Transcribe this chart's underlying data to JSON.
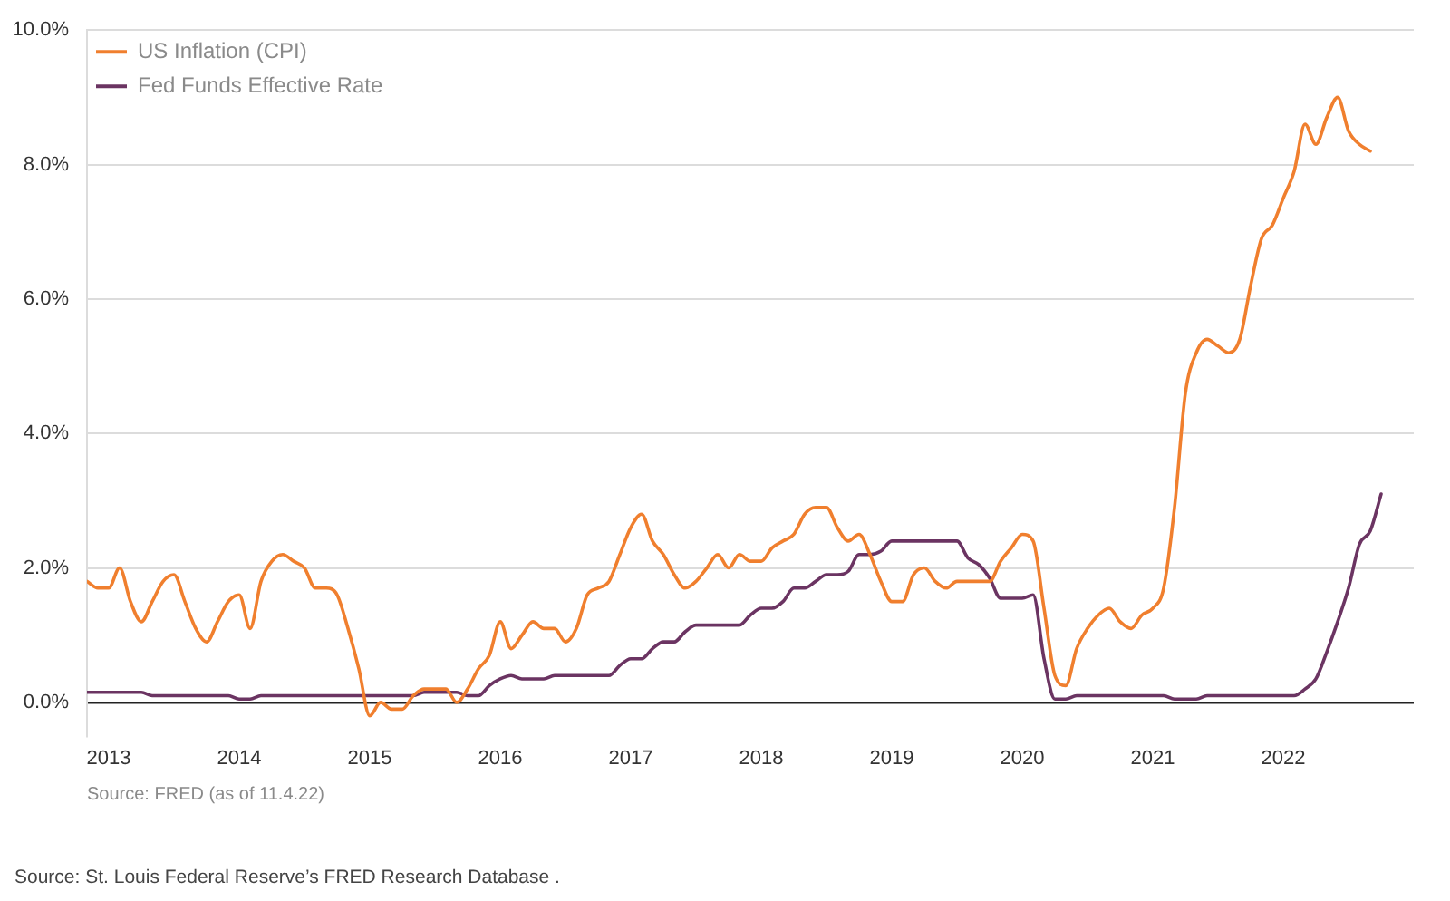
{
  "chart_data": {
    "type": "line",
    "x": [
      "2012-11",
      "2012-12",
      "2013-01",
      "2013-02",
      "2013-03",
      "2013-04",
      "2013-05",
      "2013-06",
      "2013-07",
      "2013-08",
      "2013-09",
      "2013-10",
      "2013-11",
      "2013-12",
      "2014-01",
      "2014-02",
      "2014-03",
      "2014-04",
      "2014-05",
      "2014-06",
      "2014-07",
      "2014-08",
      "2014-09",
      "2014-10",
      "2014-11",
      "2014-12",
      "2015-01",
      "2015-02",
      "2015-03",
      "2015-04",
      "2015-05",
      "2015-06",
      "2015-07",
      "2015-08",
      "2015-09",
      "2015-10",
      "2015-11",
      "2015-12",
      "2016-01",
      "2016-02",
      "2016-03",
      "2016-04",
      "2016-05",
      "2016-06",
      "2016-07",
      "2016-08",
      "2016-09",
      "2016-10",
      "2016-11",
      "2016-12",
      "2017-01",
      "2017-02",
      "2017-03",
      "2017-04",
      "2017-05",
      "2017-06",
      "2017-07",
      "2017-08",
      "2017-09",
      "2017-10",
      "2017-11",
      "2017-12",
      "2018-01",
      "2018-02",
      "2018-03",
      "2018-04",
      "2018-05",
      "2018-06",
      "2018-07",
      "2018-08",
      "2018-09",
      "2018-10",
      "2018-11",
      "2018-12",
      "2019-01",
      "2019-02",
      "2019-03",
      "2019-04",
      "2019-05",
      "2019-06",
      "2019-07",
      "2019-08",
      "2019-09",
      "2019-10",
      "2019-11",
      "2019-12",
      "2020-01",
      "2020-02",
      "2020-03",
      "2020-04",
      "2020-05",
      "2020-06",
      "2020-07",
      "2020-08",
      "2020-09",
      "2020-10",
      "2020-11",
      "2020-12",
      "2021-01",
      "2021-02",
      "2021-03",
      "2021-04",
      "2021-05",
      "2021-06",
      "2021-07",
      "2021-08",
      "2021-09",
      "2021-10",
      "2021-11",
      "2021-12",
      "2022-01",
      "2022-02",
      "2022-03",
      "2022-04",
      "2022-05",
      "2022-06",
      "2022-07",
      "2022-08",
      "2022-09",
      "2022-10"
    ],
    "series": [
      {
        "name": "US Inflation (CPI)",
        "color": "#f07f2e",
        "values": [
          1.8,
          1.7,
          1.7,
          2.0,
          1.5,
          1.2,
          1.5,
          1.8,
          1.9,
          1.5,
          1.1,
          0.9,
          1.2,
          1.5,
          1.6,
          1.1,
          1.8,
          2.1,
          2.2,
          2.1,
          2.0,
          1.7,
          1.7,
          1.6,
          1.1,
          0.5,
          -0.2,
          0.0,
          -0.1,
          -0.1,
          0.1,
          0.2,
          0.2,
          0.2,
          0.0,
          0.2,
          0.5,
          0.7,
          1.2,
          0.8,
          1.0,
          1.2,
          1.1,
          1.1,
          0.9,
          1.1,
          1.6,
          1.7,
          1.8,
          2.2,
          2.6,
          2.8,
          2.4,
          2.2,
          1.9,
          1.7,
          1.8,
          2.0,
          2.2,
          2.0,
          2.2,
          2.1,
          2.1,
          2.3,
          2.4,
          2.5,
          2.8,
          2.9,
          2.9,
          2.6,
          2.4,
          2.5,
          2.2,
          1.8,
          1.5,
          1.5,
          1.9,
          2.0,
          1.8,
          1.7,
          1.8,
          1.8,
          1.8,
          1.8,
          2.1,
          2.3,
          2.5,
          2.4,
          1.4,
          0.4,
          0.25,
          0.8,
          1.1,
          1.3,
          1.4,
          1.2,
          1.1,
          1.3,
          1.4,
          1.7,
          2.9,
          4.6,
          5.2,
          5.4,
          5.3,
          5.2,
          5.4,
          6.2,
          6.9,
          7.1,
          7.5,
          7.9,
          8.6,
          8.3,
          8.7,
          9.0,
          8.5,
          8.3,
          8.2,
          null
        ]
      },
      {
        "name": "Fed Funds Effective Rate",
        "color": "#6b3462",
        "values": [
          0.15,
          0.15,
          0.15,
          0.15,
          0.15,
          0.15,
          0.1,
          0.1,
          0.1,
          0.1,
          0.1,
          0.1,
          0.1,
          0.1,
          0.05,
          0.05,
          0.1,
          0.1,
          0.1,
          0.1,
          0.1,
          0.1,
          0.1,
          0.1,
          0.1,
          0.1,
          0.1,
          0.1,
          0.1,
          0.1,
          0.1,
          0.15,
          0.15,
          0.15,
          0.15,
          0.1,
          0.1,
          0.25,
          0.35,
          0.4,
          0.35,
          0.35,
          0.35,
          0.4,
          0.4,
          0.4,
          0.4,
          0.4,
          0.4,
          0.55,
          0.65,
          0.65,
          0.8,
          0.9,
          0.9,
          1.05,
          1.15,
          1.15,
          1.15,
          1.15,
          1.15,
          1.3,
          1.4,
          1.4,
          1.5,
          1.7,
          1.7,
          1.8,
          1.9,
          1.9,
          1.95,
          2.2,
          2.2,
          2.25,
          2.4,
          2.4,
          2.4,
          2.4,
          2.4,
          2.4,
          2.4,
          2.15,
          2.05,
          1.85,
          1.55,
          1.55,
          1.55,
          1.6,
          0.65,
          0.05,
          0.05,
          0.1,
          0.1,
          0.1,
          0.1,
          0.1,
          0.1,
          0.1,
          0.1,
          0.1,
          0.05,
          0.05,
          0.05,
          0.1,
          0.1,
          0.1,
          0.1,
          0.1,
          0.1,
          0.1,
          0.1,
          0.1,
          0.2,
          0.35,
          0.75,
          1.2,
          1.7,
          2.35,
          2.55,
          3.1
        ]
      }
    ],
    "xlim": [
      "2012-11",
      "2023-01"
    ],
    "xticks": [
      "2013",
      "2014",
      "2015",
      "2016",
      "2017",
      "2018",
      "2019",
      "2020",
      "2021",
      "2022"
    ],
    "ylim": [
      -0.5,
      10
    ],
    "yticks": [
      {
        "value": 0,
        "label": "0.0%"
      },
      {
        "value": 2,
        "label": "2.0%"
      },
      {
        "value": 4,
        "label": "4.0%"
      },
      {
        "value": 6,
        "label": "6.0%"
      },
      {
        "value": 8,
        "label": "8.0%"
      },
      {
        "value": 10,
        "label": "10.0%"
      }
    ],
    "grid": "y",
    "legend": "top left",
    "line_style": "solid",
    "annotations": [
      "Source: FRED (as of 11.4.22)",
      "Source: St. Louis Federal Reserve’s FRED Research Database ."
    ]
  }
}
